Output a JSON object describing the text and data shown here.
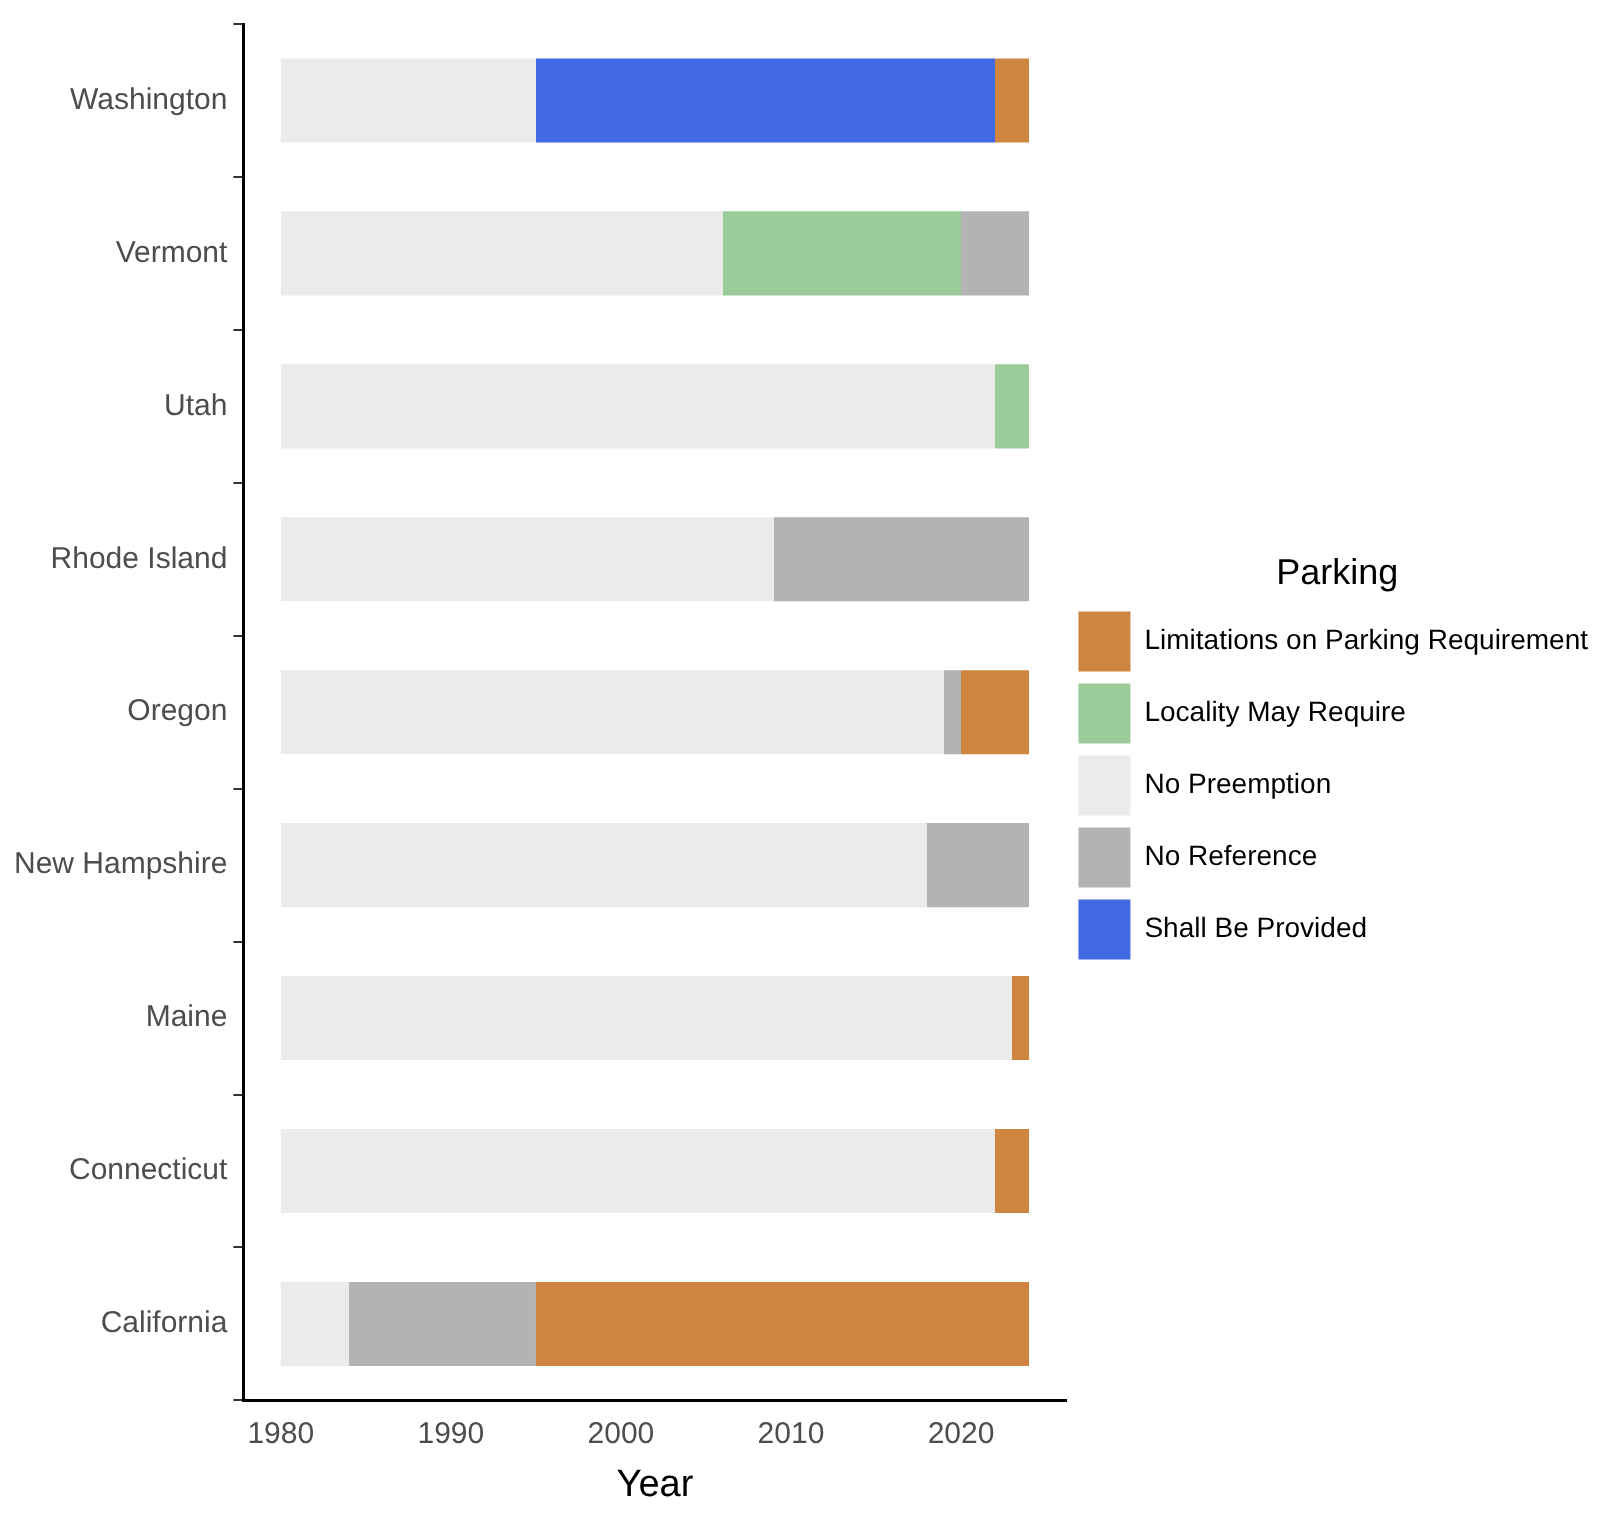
{
  "chart_data": {
    "type": "bar",
    "orientation": "horizontal",
    "xlabel": "Year",
    "legend_title": "Parking",
    "legend": "right",
    "categories": [
      "Washington",
      "Vermont",
      "Utah",
      "Rhode Island",
      "Oregon",
      "New Hampshire",
      "Maine",
      "Connecticut",
      "California"
    ],
    "xlim": [
      1977.8,
      2026.2
    ],
    "xticks": [
      1980,
      1990,
      2000,
      2010,
      2020
    ],
    "series": [
      {
        "name": "Limitations on Parking Requirement",
        "color": "#cd853f",
        "base": [
          2022,
          null,
          null,
          null,
          2020,
          null,
          2023,
          2022,
          1995
        ],
        "values": [
          2,
          null,
          null,
          null,
          4,
          null,
          1,
          2,
          29
        ]
      },
      {
        "name": "Locality May Require",
        "color": "#99cc99",
        "base": [
          null,
          2006,
          2022,
          null,
          null,
          null,
          null,
          null,
          null
        ],
        "values": [
          null,
          14,
          2,
          null,
          null,
          null,
          null,
          null,
          null
        ]
      },
      {
        "name": "No Preemption",
        "color": "#ebebeb",
        "base": [
          1980,
          1980,
          1980,
          1980,
          1980,
          1980,
          1980,
          1980,
          1980
        ],
        "values": [
          15,
          26,
          42,
          29,
          39,
          38,
          43,
          42,
          4
        ]
      },
      {
        "name": "No Reference",
        "color": "#b3b3b3",
        "base": [
          null,
          2020,
          null,
          2009,
          2019,
          2018,
          null,
          null,
          1984
        ],
        "values": [
          null,
          4,
          null,
          15,
          1,
          6,
          null,
          null,
          11
        ]
      },
      {
        "name": "Shall Be Provided",
        "color": "#4169e1",
        "base": [
          1995,
          null,
          null,
          null,
          null,
          null,
          null,
          null,
          null
        ],
        "values": [
          27,
          null,
          null,
          null,
          null,
          null,
          null,
          null,
          null
        ]
      }
    ]
  }
}
